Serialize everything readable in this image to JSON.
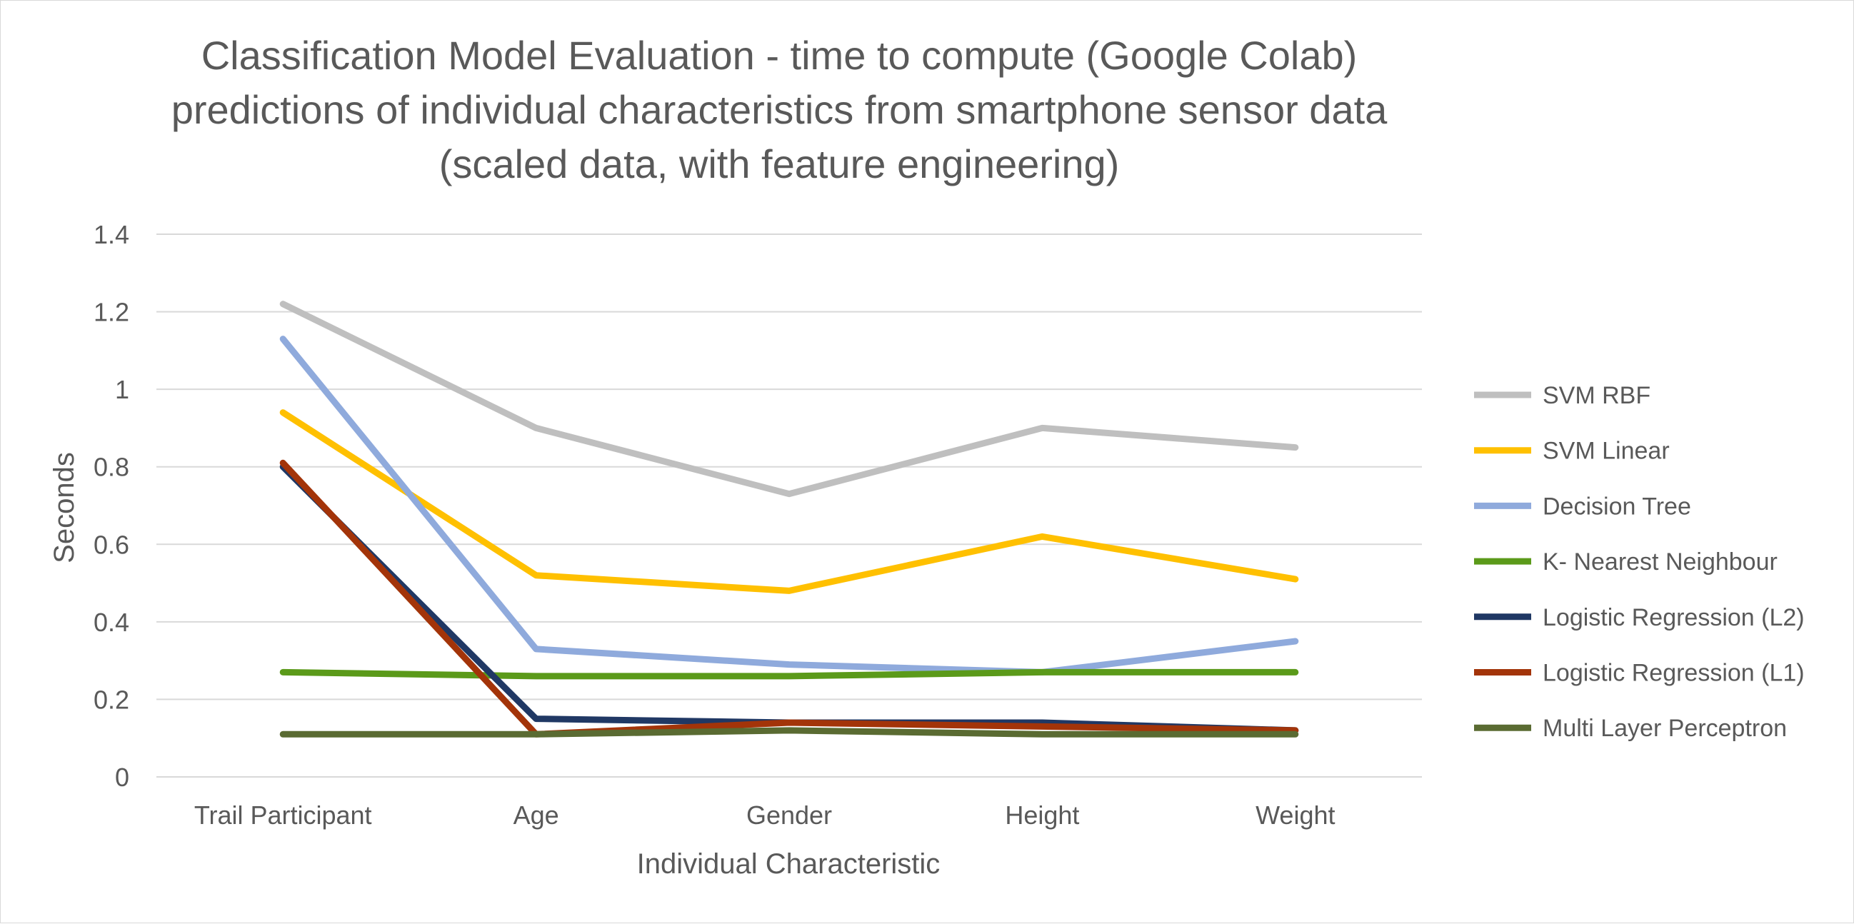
{
  "chart_data": {
    "type": "line",
    "title_lines": [
      "Classification Model Evaluation - time to compute (Google Colab)",
      "predictions of individual characteristics from smartphone sensor data",
      "(scaled data, with feature engineering)"
    ],
    "xlabel": "Individual Characteristic",
    "ylabel": "Seconds",
    "categories": [
      "Trail Participant",
      "Age",
      "Gender",
      "Height",
      "Weight"
    ],
    "y_ticks": [
      "0",
      "0.2",
      "0.4",
      "0.6",
      "0.8",
      "1",
      "1.2",
      "1.4"
    ],
    "ylim": [
      0,
      1.4
    ],
    "grid": true,
    "legend_position": "right",
    "series": [
      {
        "name": "SVM RBF",
        "color": "#bfbfbf",
        "values": [
          1.22,
          0.9,
          0.73,
          0.9,
          0.85
        ]
      },
      {
        "name": "SVM Linear",
        "color": "#ffc000",
        "values": [
          0.94,
          0.52,
          0.48,
          0.62,
          0.51
        ]
      },
      {
        "name": "Decision Tree",
        "color": "#8faadc",
        "values": [
          1.13,
          0.33,
          0.29,
          0.27,
          0.35
        ]
      },
      {
        "name": "K- Nearest Neighbour",
        "color": "#5b9a1a",
        "values": [
          0.27,
          0.26,
          0.26,
          0.27,
          0.27
        ]
      },
      {
        "name": "Logistic Regression (L2)",
        "color": "#203864",
        "values": [
          0.8,
          0.15,
          0.14,
          0.14,
          0.12
        ]
      },
      {
        "name": "Logistic Regression (L1)",
        "color": "#a33409",
        "values": [
          0.81,
          0.11,
          0.14,
          0.13,
          0.12
        ]
      },
      {
        "name": "Multi Layer Perceptron",
        "color": "#5a6b32",
        "values": [
          0.11,
          0.11,
          0.12,
          0.11,
          0.11
        ]
      }
    ]
  }
}
